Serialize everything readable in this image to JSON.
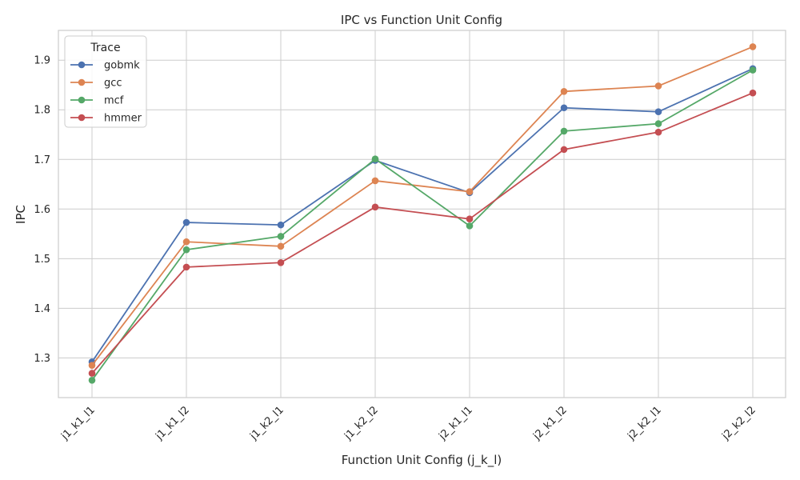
{
  "chart_data": {
    "type": "line",
    "title": "IPC vs Function Unit Config",
    "xlabel": "Function Unit Config (j_k_l)",
    "ylabel": "IPC",
    "categories": [
      "j1_k1_l1",
      "j1_k1_l2",
      "j1_k2_l1",
      "j1_k2_l2",
      "j2_k1_l1",
      "j2_k1_l2",
      "j2_k2_l1",
      "j2_k2_l2"
    ],
    "ylim": [
      1.22,
      1.96
    ],
    "yticks": [
      1.3,
      1.4,
      1.5,
      1.6,
      1.7,
      1.8,
      1.9
    ],
    "grid": true,
    "legend": {
      "title": "Trace",
      "placement": "top-left"
    },
    "series": [
      {
        "name": "gobmk",
        "color": "#4c72b0",
        "values": [
          1.292,
          1.573,
          1.568,
          1.698,
          1.633,
          1.804,
          1.796,
          1.883
        ]
      },
      {
        "name": "gcc",
        "color": "#dd8452",
        "values": [
          1.285,
          1.534,
          1.525,
          1.657,
          1.635,
          1.837,
          1.848,
          1.927
        ]
      },
      {
        "name": "mcf",
        "color": "#55a868",
        "values": [
          1.255,
          1.518,
          1.545,
          1.701,
          1.566,
          1.757,
          1.772,
          1.88
        ]
      },
      {
        "name": "hmmer",
        "color": "#c44e52",
        "values": [
          1.269,
          1.483,
          1.492,
          1.604,
          1.58,
          1.72,
          1.755,
          1.834
        ]
      }
    ]
  }
}
